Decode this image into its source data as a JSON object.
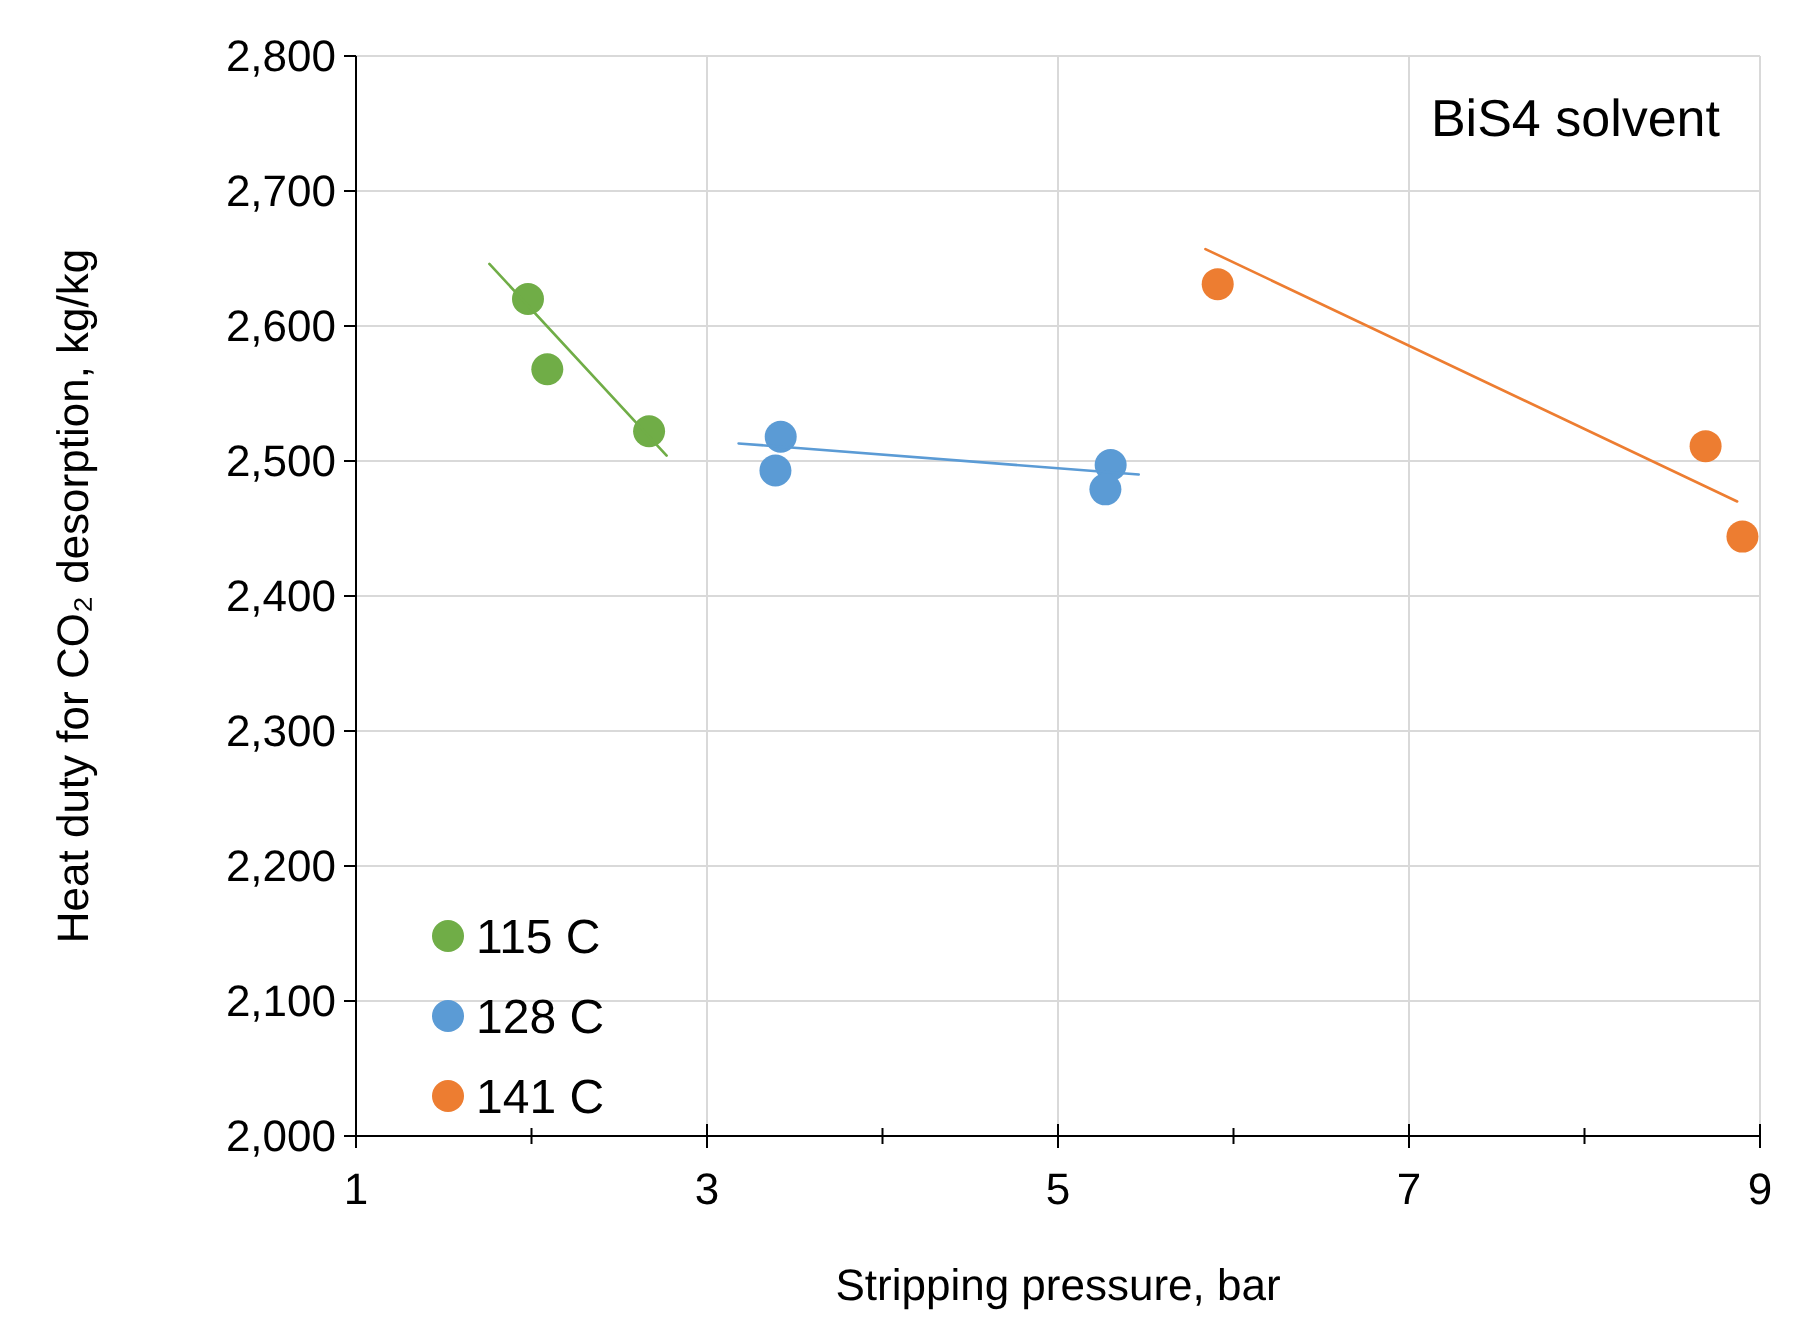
{
  "chart_data": {
    "type": "scatter",
    "xlabel": "Stripping pressure,  bar",
    "ylabel": "Heat duty for CO₂ desorption,  kg/kg",
    "annotations": [
      "BiS4 solvent"
    ],
    "series": [
      {
        "name": "115 C",
        "color": "#70ad47",
        "x": [
          1.98,
          2.09,
          2.67
        ],
        "values": [
          2620,
          2568,
          2522
        ]
      },
      {
        "name": "128 C",
        "color": "#5b9bd5",
        "x": [
          3.42,
          3.39,
          5.3,
          5.27
        ],
        "values": [
          2518,
          2493,
          2497,
          2479
        ]
      },
      {
        "name": "141 C",
        "color": "#ed7d31",
        "x": [
          5.91,
          8.69,
          8.9
        ],
        "values": [
          2631,
          2511,
          2444
        ]
      },
      {
        "type": "line",
        "marker": "none",
        "color": "#70ad47",
        "x": [
          1.76,
          2.77
        ],
        "values": [
          2646,
          2504
        ]
      },
      {
        "type": "line",
        "marker": "none",
        "color": "#5b9bd5",
        "x": [
          3.18,
          5.46
        ],
        "values": [
          2513,
          2490
        ]
      },
      {
        "type": "line",
        "marker": "none",
        "color": "#ed7d31",
        "x": [
          5.84,
          8.87
        ],
        "values": [
          2657,
          2470
        ]
      }
    ],
    "xlim": [
      1,
      9
    ],
    "xticks": [
      1,
      {
        "value": 2,
        "label": null
      },
      3,
      {
        "value": 4,
        "label": null
      },
      5,
      {
        "value": 6,
        "label": null
      },
      7,
      {
        "value": 8,
        "label": null
      },
      9
    ],
    "ylim": [
      2000,
      2800
    ],
    "yticks": [
      {
        "value": 2000,
        "label": "2,000"
      },
      {
        "value": 2100,
        "label": "2,100"
      },
      {
        "value": 2200,
        "label": "2,200"
      },
      {
        "value": 2300,
        "label": "2,300"
      },
      {
        "value": 2400,
        "label": "2,400"
      },
      {
        "value": 2500,
        "label": "2,500"
      },
      {
        "value": 2600,
        "label": "2,600"
      },
      {
        "value": 2700,
        "label": "2,700"
      },
      {
        "value": 2800,
        "label": "2,800"
      }
    ],
    "grid": true,
    "legend": "bottom left",
    "marker": "circle"
  }
}
